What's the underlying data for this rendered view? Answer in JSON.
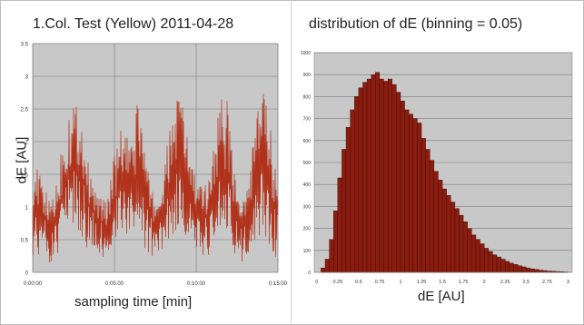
{
  "chart_data": [
    {
      "type": "line",
      "title": "1.Col. Test (Yellow) 2011-04-28",
      "xlabel": "sampling time [min]",
      "ylabel": "dE [AU]",
      "x_tick_labels": [
        "0:00:00",
        "0:05:00",
        "0:10:00",
        "0:15:00"
      ],
      "y_ticks": [
        0,
        0.5,
        1,
        1.5,
        2,
        2.5,
        3,
        3.5
      ],
      "ylim": [
        0,
        3.5
      ],
      "xlim_minutes": [
        0,
        15
      ],
      "grid": true,
      "colors": {
        "series": "#b1321a",
        "plot_background": "#c8c8c8",
        "grid": "#7a7a7a"
      },
      "series": [
        {
          "x_minutes": [
            0,
            0.5,
            1,
            1.5,
            2,
            2.5,
            3,
            3.5,
            4,
            4.5,
            5,
            5.5,
            6,
            6.5,
            7,
            7.5,
            8,
            8.5,
            9,
            9.5,
            10,
            10.5,
            11,
            11.5,
            12,
            12.5,
            13,
            13.5,
            14,
            14.5,
            15
          ],
          "values": [
            1.0,
            0.9,
            0.7,
            0.8,
            1.3,
            1.7,
            1.5,
            1.0,
            0.8,
            0.7,
            1.1,
            1.4,
            1.3,
            1.5,
            1.0,
            0.7,
            0.9,
            1.4,
            1.8,
            1.3,
            0.9,
            0.8,
            1.1,
            1.7,
            1.4,
            0.8,
            0.7,
            1.2,
            1.8,
            1.2,
            0.9
          ],
          "max": [
            1.7,
            1.5,
            1.1,
            1.5,
            2.6,
            2.7,
            2.4,
            1.5,
            1.2,
            1.1,
            1.8,
            2.3,
            1.9,
            3.0,
            1.6,
            1.1,
            1.5,
            2.5,
            2.9,
            2.1,
            1.4,
            1.3,
            1.9,
            2.8,
            2.6,
            1.2,
            1.1,
            2.1,
            2.8,
            2.6,
            1.5
          ],
          "min": [
            0.2,
            0.3,
            0.1,
            0.2,
            0.5,
            0.7,
            0.5,
            0.3,
            0.3,
            0.1,
            0.4,
            0.5,
            0.5,
            0.4,
            0.3,
            0.2,
            0.3,
            0.5,
            0.7,
            0.5,
            0.3,
            0.2,
            0.3,
            0.6,
            0.5,
            0.2,
            0.1,
            0.4,
            0.6,
            0.3,
            0.2
          ]
        }
      ]
    },
    {
      "type": "bar",
      "title": "distribution of dE (binning = 0.05)",
      "xlabel": "dE [AU]",
      "ylabel": "",
      "x_ticks": [
        0,
        0.25,
        0.5,
        0.75,
        1,
        1.25,
        1.5,
        1.75,
        2,
        2.25,
        2.5,
        2.75,
        3
      ],
      "x_tick_labels": [
        "0",
        "0.25",
        "0.5",
        "0.75",
        "1",
        "1.25",
        "1.5",
        "1.75",
        "2",
        "2.25",
        "2.5",
        "2.75",
        "3"
      ],
      "y_ticks": [
        0,
        100,
        200,
        300,
        400,
        500,
        600,
        700,
        800,
        900,
        1000
      ],
      "ylim": [
        0,
        1000
      ],
      "xlim": [
        -0.03,
        3.05
      ],
      "bin_width": 0.05,
      "grid": true,
      "colors": {
        "bar": "#8a1c10",
        "plot_background": "#c8c8c8",
        "grid": "#7a7a7a"
      },
      "bin_starts": [
        0.05,
        0.1,
        0.15,
        0.2,
        0.25,
        0.3,
        0.35,
        0.4,
        0.45,
        0.5,
        0.55,
        0.6,
        0.65,
        0.7,
        0.75,
        0.8,
        0.85,
        0.9,
        0.95,
        1.0,
        1.05,
        1.1,
        1.15,
        1.2,
        1.25,
        1.3,
        1.35,
        1.4,
        1.45,
        1.5,
        1.55,
        1.6,
        1.65,
        1.7,
        1.75,
        1.8,
        1.85,
        1.9,
        1.95,
        2.0,
        2.05,
        2.1,
        2.15,
        2.2,
        2.25,
        2.3,
        2.35,
        2.4,
        2.45,
        2.5,
        2.55,
        2.6,
        2.65,
        2.7,
        2.75,
        2.8,
        2.85,
        2.9,
        2.95
      ],
      "values": [
        20,
        60,
        150,
        280,
        430,
        560,
        660,
        740,
        800,
        840,
        865,
        880,
        900,
        910,
        880,
        870,
        880,
        855,
        820,
        780,
        740,
        720,
        700,
        680,
        610,
        560,
        510,
        460,
        420,
        380,
        350,
        320,
        290,
        260,
        230,
        200,
        170,
        150,
        130,
        110,
        95,
        80,
        70,
        60,
        50,
        42,
        36,
        30,
        25,
        20,
        16,
        13,
        10,
        8,
        6,
        5,
        4,
        3,
        2
      ]
    }
  ]
}
